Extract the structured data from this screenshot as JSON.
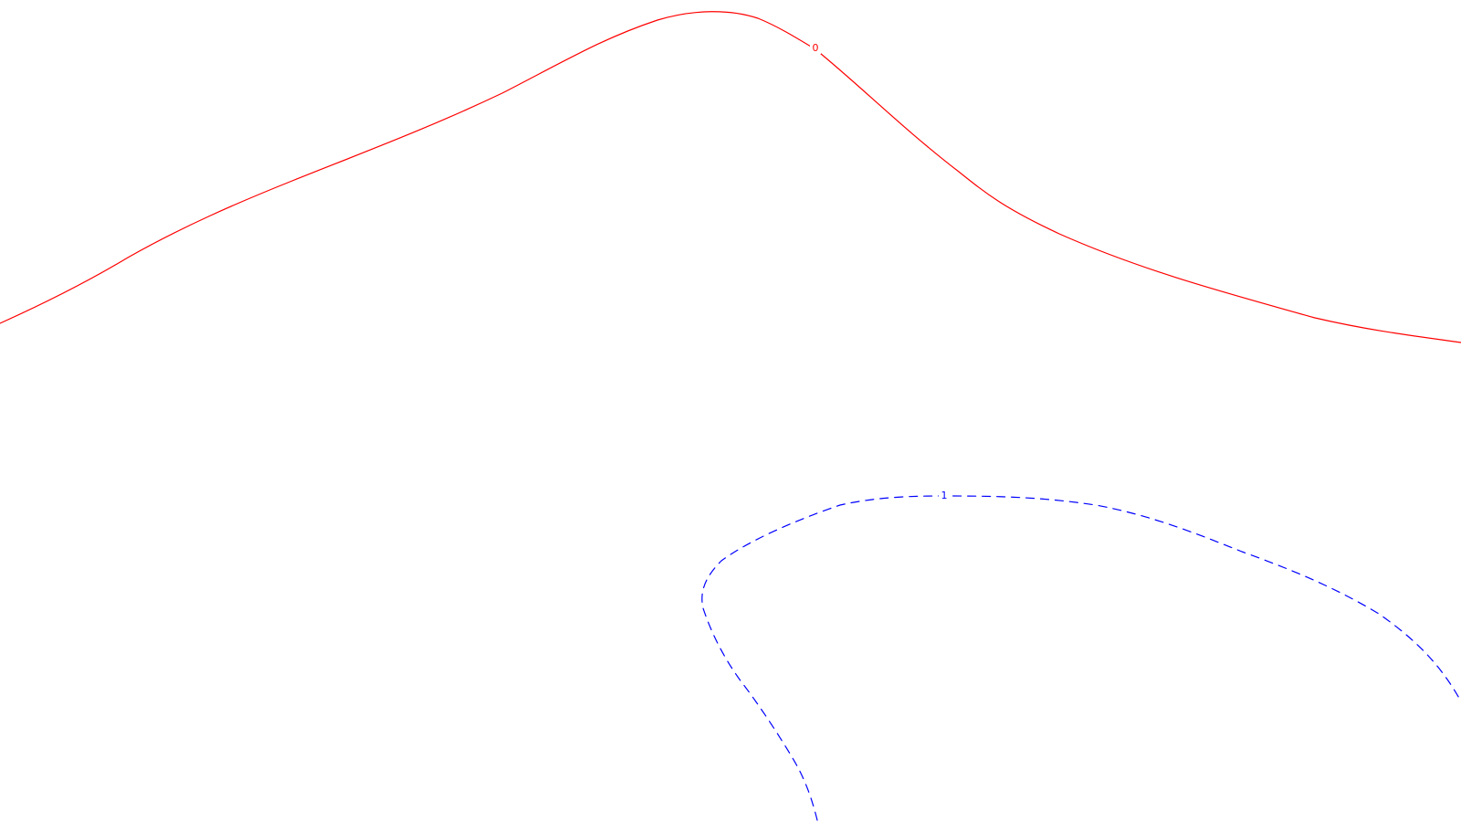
{
  "canvas": {
    "background": "#ffffff"
  },
  "contours": [
    {
      "id": "contour-0",
      "label": "0",
      "color": "#ff0000",
      "style": "solid"
    },
    {
      "id": "contour-1",
      "label": "1",
      "color": "#0000ff",
      "style": "dashed"
    }
  ]
}
